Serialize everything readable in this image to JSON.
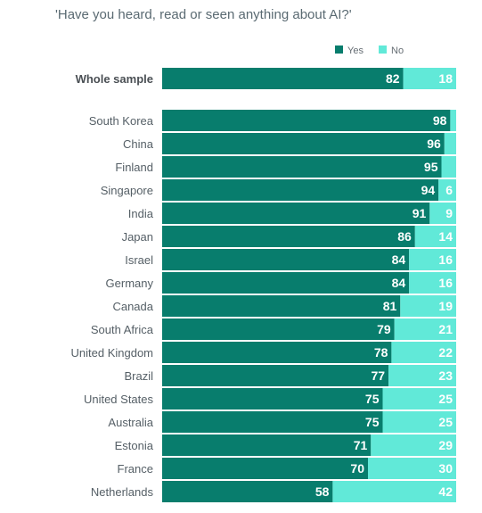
{
  "chart_data": {
    "type": "bar",
    "orientation": "horizontal",
    "stacked": true,
    "title": "'Have you heard, read or seen anything about AI?'",
    "xlim": [
      0,
      100
    ],
    "grid": false,
    "legend_position": "top-right",
    "colors": {
      "Yes": "#087d6d",
      "No": "#61e9d8"
    },
    "categories": [
      "Whole sample",
      "South Korea",
      "China",
      "Finland",
      "Singapore",
      "India",
      "Japan",
      "Israel",
      "Germany",
      "Canada",
      "South Africa",
      "United Kingdom",
      "Brazil",
      "United States",
      "Australia",
      "Estonia",
      "France",
      "Netherlands"
    ],
    "series": [
      {
        "name": "Yes",
        "values": [
          82,
          98,
          96,
          95,
          94,
          91,
          86,
          84,
          84,
          81,
          79,
          78,
          77,
          75,
          75,
          71,
          70,
          58
        ]
      },
      {
        "name": "No",
        "values": [
          18,
          2,
          4,
          5,
          6,
          9,
          14,
          16,
          16,
          19,
          21,
          22,
          23,
          25,
          25,
          29,
          30,
          42
        ]
      }
    ],
    "value_labels": {
      "Yes": [
        "82",
        "98",
        "96",
        "95",
        "94",
        "91",
        "86",
        "84",
        "84",
        "81",
        "79",
        "78",
        "77",
        "75",
        "75",
        "71",
        "70",
        "58"
      ],
      "No": [
        "18",
        "",
        "",
        "",
        "6",
        "9",
        "14",
        "16",
        "16",
        "19",
        "21",
        "22",
        "23",
        "25",
        "25",
        "29",
        "30",
        "42"
      ]
    }
  }
}
